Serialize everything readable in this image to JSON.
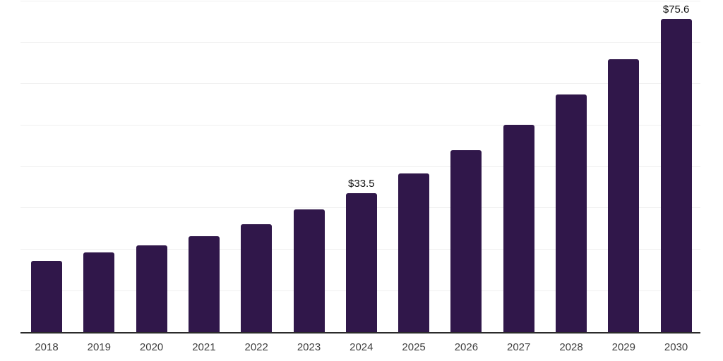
{
  "chart_data": {
    "type": "bar",
    "title": "",
    "xlabel": "",
    "ylabel": "",
    "categories": [
      "2018",
      "2019",
      "2020",
      "2021",
      "2022",
      "2023",
      "2024",
      "2025",
      "2026",
      "2027",
      "2028",
      "2029",
      "2030"
    ],
    "values": [
      17.2,
      19.2,
      20.9,
      23.1,
      26.0,
      29.7,
      33.5,
      38.3,
      43.9,
      50.1,
      57.4,
      65.9,
      75.6
    ],
    "data_labels": [
      {
        "category": "2024",
        "text": "$33.5"
      },
      {
        "category": "2030",
        "text": "$75.6"
      }
    ],
    "ylim": [
      0,
      80
    ],
    "gridline_step": 10,
    "grid": "horizontal-only",
    "legend": "none",
    "y_axis_labels_visible": false,
    "colors": {
      "bar": "#30174a",
      "axis_line": "#2b2b2b",
      "gridline": "#f0f0f0",
      "tick_label": "#404040",
      "data_label": "#111111",
      "background": "#ffffff"
    }
  }
}
